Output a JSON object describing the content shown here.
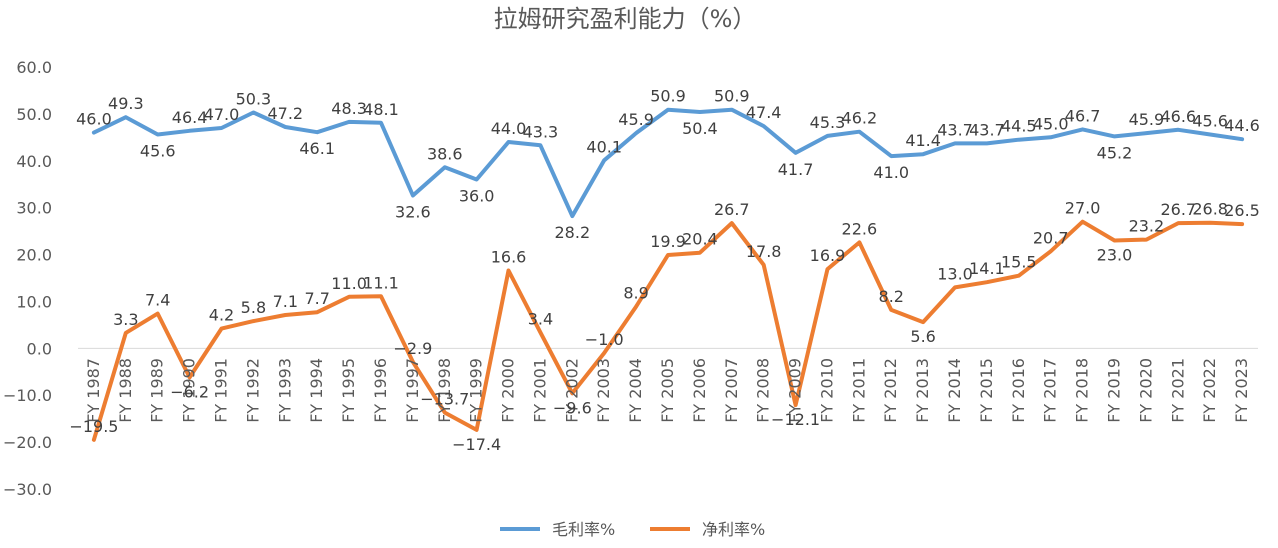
{
  "chart_data": {
    "type": "line",
    "title": "拉姆研究盈利能力（%）",
    "xlabel": "",
    "ylabel": "",
    "ylim": [
      -30,
      60
    ],
    "yticks": [
      "60.0",
      "50.0",
      "40.0",
      "30.0",
      "20.0",
      "10.0",
      "0.0",
      "−10.0",
      "−20.0",
      "−30.0"
    ],
    "categories": [
      "FY 1987",
      "FY 1988",
      "FY 1989",
      "FY 1990",
      "FY 1991",
      "FY 1992",
      "FY 1993",
      "FY 1994",
      "FY 1995",
      "FY 1996",
      "FY 1997",
      "FY 1998",
      "FY 1999",
      "FY 2000",
      "FY 2001",
      "FY 2002",
      "FY 2003",
      "FY 2004",
      "FY 2005",
      "FY 2006",
      "FY 2007",
      "FY 2008",
      "FY 2009",
      "FY 2010",
      "FY 2011",
      "FY 2012",
      "FY 2013",
      "FY 2014",
      "FY 2015",
      "FY 2016",
      "FY 2017",
      "FY 2018",
      "FY 2019",
      "FY 2020",
      "FY 2021",
      "FY 2022",
      "FY 2023"
    ],
    "series": [
      {
        "name": "毛利率%",
        "color": "#5B9BD5",
        "values": [
          46.0,
          49.3,
          45.6,
          46.4,
          47.0,
          50.3,
          47.2,
          46.1,
          48.3,
          48.1,
          32.6,
          38.6,
          36.0,
          44.0,
          43.3,
          28.2,
          40.1,
          45.9,
          50.9,
          50.4,
          50.9,
          47.4,
          41.7,
          45.3,
          46.2,
          41.0,
          41.4,
          43.7,
          43.7,
          44.5,
          45.0,
          46.7,
          45.2,
          45.9,
          46.6,
          45.6,
          44.6
        ],
        "labels": [
          "46.0",
          "49.3",
          "45.6",
          "46.4",
          "47.0",
          "50.3",
          "47.2",
          "46.1",
          "48.3",
          "48.1",
          "32.6",
          "38.6",
          "36.0",
          "44.0",
          "43.3",
          "28.2",
          "40.1",
          "45.9",
          "50.9",
          "50.4",
          "50.9",
          "47.4",
          "41.7",
          "45.3",
          "46.2",
          "41.0",
          "41.4",
          "43.7",
          "43.7",
          "44.5",
          "45.0",
          "46.7",
          "45.2",
          "45.9",
          "46.6",
          "45.6",
          "44.6"
        ]
      },
      {
        "name": "净利率%",
        "color": "#ED7D31",
        "values": [
          -19.5,
          3.3,
          7.4,
          -6.2,
          4.2,
          5.8,
          7.1,
          7.7,
          11.0,
          11.1,
          -2.9,
          -13.7,
          -17.4,
          16.6,
          3.4,
          -9.6,
          -1.0,
          8.9,
          19.9,
          20.4,
          26.7,
          17.8,
          -12.1,
          16.9,
          22.6,
          8.2,
          5.6,
          13.0,
          14.1,
          15.5,
          20.7,
          27.0,
          23.0,
          23.2,
          26.7,
          26.8,
          26.5
        ],
        "labels": [
          "−19.5",
          "3.3",
          "7.4",
          "−6.2",
          "4.2",
          "5.8",
          "7.1",
          "7.7",
          "11.0",
          "11.1",
          "−2.9",
          "−13.7",
          "−17.4",
          "16.6",
          "3.4",
          "−9.6",
          "−1.0",
          "8.9",
          "19.9",
          "20.4",
          "26.7",
          "17.8",
          "−12.1",
          "16.9",
          "22.6",
          "8.2",
          "5.6",
          "13.0",
          "14.1",
          "15.5",
          "20.7",
          "27.0",
          "23.0",
          "23.2",
          "26.7",
          "26.8",
          "26.5"
        ]
      }
    ],
    "grid": false,
    "legend_position": "bottom"
  }
}
